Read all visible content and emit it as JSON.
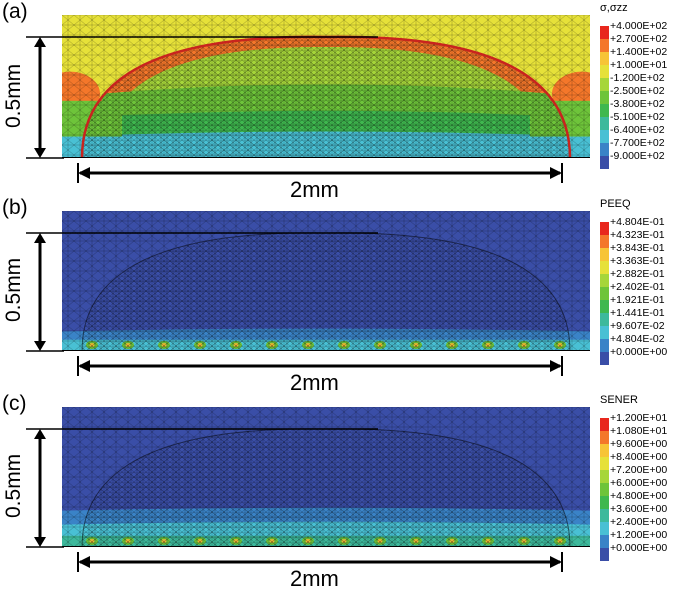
{
  "panels": [
    {
      "label": "(a)",
      "legend_title": "σ,σzz",
      "colors": [
        "#e8271d",
        "#f4772a",
        "#f7c436",
        "#e6e139",
        "#a6d63a",
        "#6ec43a",
        "#3fb84f",
        "#3db99c",
        "#49c0d4",
        "#3a83c7",
        "#3a4ea7"
      ],
      "ticks": [
        "+4.000E+02",
        "+2.700E+02",
        "+1.400E+02",
        "+1.000E+01",
        "-1.200E+02",
        "-2.500E+02",
        "-3.800E+02",
        "-5.100E+02",
        "-6.400E+02",
        "-7.700E+02",
        "-9.000E+02"
      ],
      "vertical_dim": "0.5mm",
      "horizontal_dim": "2mm"
    },
    {
      "label": "(b)",
      "legend_title": "PEEQ",
      "colors": [
        "#e8271d",
        "#f4772a",
        "#f7c436",
        "#e6e139",
        "#a6d63a",
        "#6ec43a",
        "#3fb84f",
        "#3db99c",
        "#49c0d4",
        "#3a83c7",
        "#3a4ea7"
      ],
      "ticks": [
        "+4.804E-01",
        "+4.323E-01",
        "+3.843E-01",
        "+3.363E-01",
        "+2.882E-01",
        "+2.402E-01",
        "+1.921E-01",
        "+1.441E-01",
        "+9.607E-02",
        "+4.804E-02",
        "+0.000E+00"
      ],
      "vertical_dim": "0.5mm",
      "horizontal_dim": "2mm"
    },
    {
      "label": "(c)",
      "legend_title": "SENER",
      "colors": [
        "#e8271d",
        "#f4772a",
        "#f7c436",
        "#e6e139",
        "#a6d63a",
        "#6ec43a",
        "#3fb84f",
        "#3db99c",
        "#49c0d4",
        "#3a83c7",
        "#3a4ea7"
      ],
      "ticks": [
        "+1.200E+01",
        "+1.080E+01",
        "+9.600E+00",
        "+8.400E+00",
        "+7.200E+00",
        "+6.000E+00",
        "+4.800E+00",
        "+3.600E+00",
        "+2.400E+00",
        "+1.200E+00",
        "+0.000E+00"
      ],
      "vertical_dim": "0.5mm",
      "horizontal_dim": "2mm"
    }
  ]
}
